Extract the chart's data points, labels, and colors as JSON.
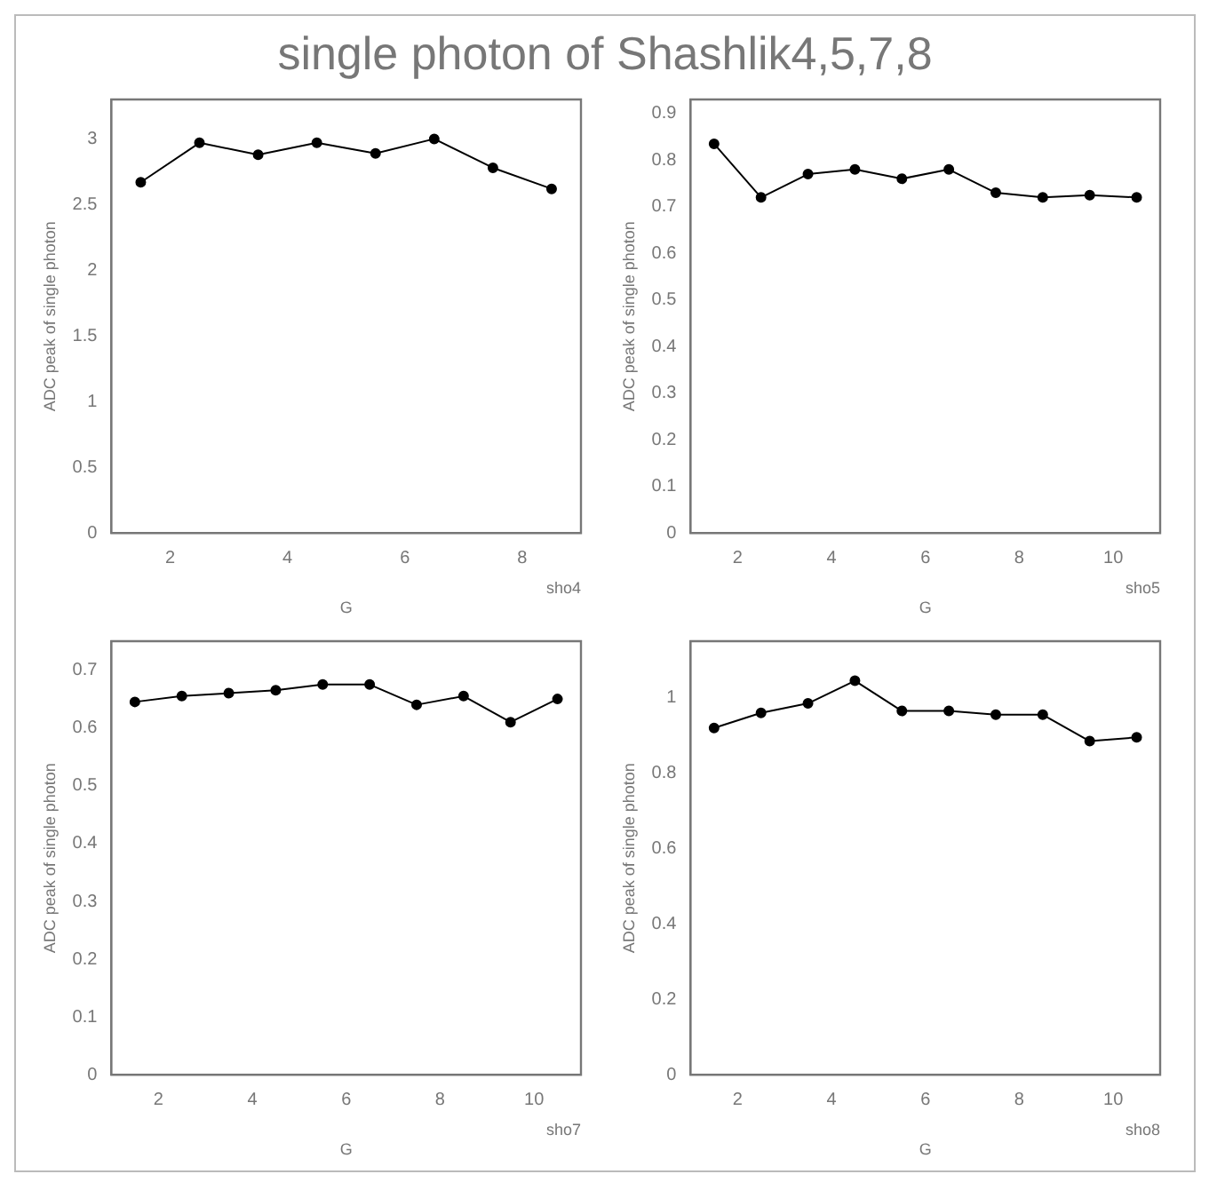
{
  "chart_data": [
    {
      "type": "line",
      "title": "single photon of Shashlik4,5,7,8",
      "xlabel": "G",
      "ylabel": "ADC peak of single photon",
      "annotations": [
        "sho4"
      ],
      "marker": "circle",
      "grid": false,
      "xlim": [
        1,
        9
      ],
      "xticks": [
        2,
        4,
        6,
        8
      ],
      "ylim": [
        0,
        3.3
      ],
      "yticks": [
        0,
        0.5,
        1,
        1.5,
        2,
        2.5,
        3
      ],
      "x": [
        1.5,
        2.5,
        3.5,
        4.5,
        5.5,
        6.5,
        7.5,
        8.5
      ],
      "series": [
        {
          "color": "#000000",
          "values": [
            2.67,
            2.97,
            2.88,
            2.97,
            2.89,
            3.0,
            2.78,
            2.62
          ]
        }
      ]
    },
    {
      "type": "line",
      "xlabel": "G",
      "ylabel": "ADC peak of single photon",
      "annotations": [
        "sho5"
      ],
      "marker": "circle",
      "grid": false,
      "xlim": [
        1,
        11
      ],
      "xticks": [
        2,
        4,
        6,
        8,
        10
      ],
      "ylim": [
        0,
        0.93
      ],
      "yticks": [
        0,
        0.1,
        0.2,
        0.3,
        0.4,
        0.5,
        0.6,
        0.7,
        0.8,
        0.9
      ],
      "x": [
        1.5,
        2.5,
        3.5,
        4.5,
        5.5,
        6.5,
        7.5,
        8.5,
        9.5,
        10.5
      ],
      "series": [
        {
          "color": "#000000",
          "values": [
            0.835,
            0.72,
            0.77,
            0.78,
            0.76,
            0.78,
            0.73,
            0.72,
            0.725,
            0.72
          ]
        }
      ]
    },
    {
      "type": "line",
      "xlabel": "G",
      "ylabel": "ADC peak of single photon",
      "annotations": [
        "sho7"
      ],
      "marker": "circle",
      "grid": false,
      "xlim": [
        1,
        11
      ],
      "xticks": [
        2,
        4,
        6,
        8,
        10
      ],
      "ylim": [
        0,
        0.75
      ],
      "yticks": [
        0,
        0.1,
        0.2,
        0.3,
        0.4,
        0.5,
        0.6,
        0.7
      ],
      "x": [
        1.5,
        2.5,
        3.5,
        4.5,
        5.5,
        6.5,
        7.5,
        8.5,
        9.5,
        10.5
      ],
      "series": [
        {
          "color": "#000000",
          "values": [
            0.645,
            0.655,
            0.66,
            0.665,
            0.675,
            0.675,
            0.64,
            0.655,
            0.61,
            0.65
          ]
        }
      ]
    },
    {
      "type": "line",
      "xlabel": "G",
      "ylabel": "ADC peak of single photon",
      "annotations": [
        "sho8"
      ],
      "marker": "circle",
      "grid": false,
      "xlim": [
        1,
        11
      ],
      "xticks": [
        2,
        4,
        6,
        8,
        10
      ],
      "ylim": [
        0,
        1.15
      ],
      "yticks": [
        0,
        0.2,
        0.4,
        0.6,
        0.8,
        1
      ],
      "x": [
        1.5,
        2.5,
        3.5,
        4.5,
        5.5,
        6.5,
        7.5,
        8.5,
        9.5,
        10.5
      ],
      "series": [
        {
          "color": "#000000",
          "values": [
            0.92,
            0.96,
            0.985,
            1.045,
            0.965,
            0.965,
            0.955,
            0.955,
            0.885,
            0.895
          ]
        }
      ]
    }
  ]
}
